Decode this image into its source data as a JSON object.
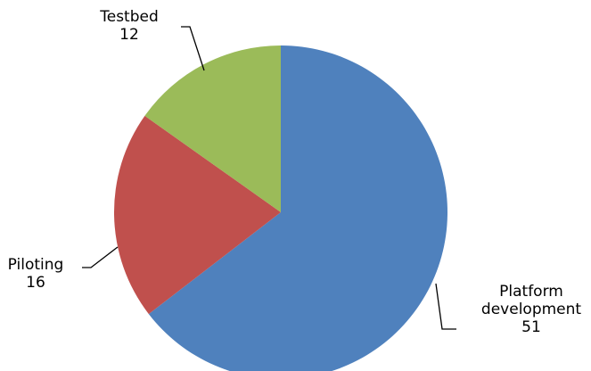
{
  "chart_data": {
    "type": "pie",
    "slices": [
      {
        "category": "Platform development",
        "label_lines": [
          "Platform",
          "development"
        ],
        "value": 51,
        "color": "#4F81BD"
      },
      {
        "category": "Piloting",
        "label_lines": [
          "Piloting"
        ],
        "value": 16,
        "color": "#C0504D"
      },
      {
        "category": "Testbed",
        "label_lines": [
          "Testbed"
        ],
        "value": 12,
        "color": "#9BBB59"
      }
    ],
    "start_angle_deg": 0,
    "direction": "clockwise",
    "legend": "none",
    "data_labels": "category and value, outside with leader lines"
  }
}
